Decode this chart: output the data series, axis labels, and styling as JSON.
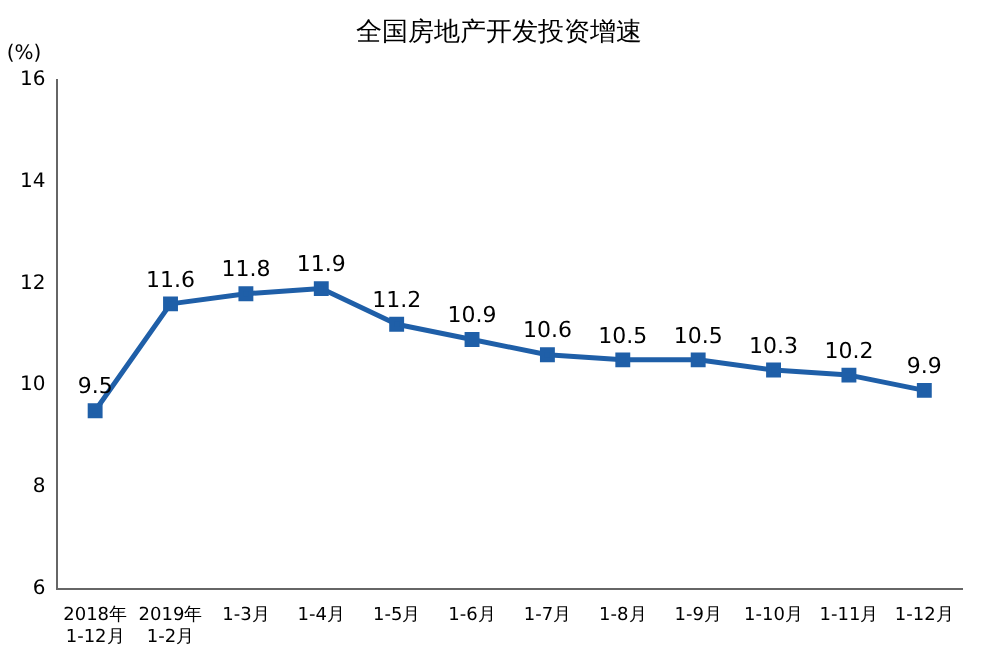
{
  "chart_data": {
    "type": "line",
    "title": "全国房地产开发投资增速",
    "ylabel": "(%)",
    "categories": [
      "2018年\n1-12月",
      "2019年\n1-2月",
      "1-3月",
      "1-4月",
      "1-5月",
      "1-6月",
      "1-7月",
      "1-8月",
      "1-9月",
      "1-10月",
      "1-11月",
      "1-12月"
    ],
    "series": [
      {
        "color": "#1f5fa8",
        "values": [
          9.5,
          11.6,
          11.8,
          11.9,
          11.2,
          10.9,
          10.6,
          10.5,
          10.5,
          10.3,
          10.2,
          9.9
        ]
      }
    ],
    "ylim": [
      6,
      16
    ],
    "yticks": [
      6,
      8,
      10,
      12,
      14,
      16
    ],
    "grid": false,
    "legend": false,
    "marker": "square",
    "line_style": "solid",
    "data_labels": true
  }
}
